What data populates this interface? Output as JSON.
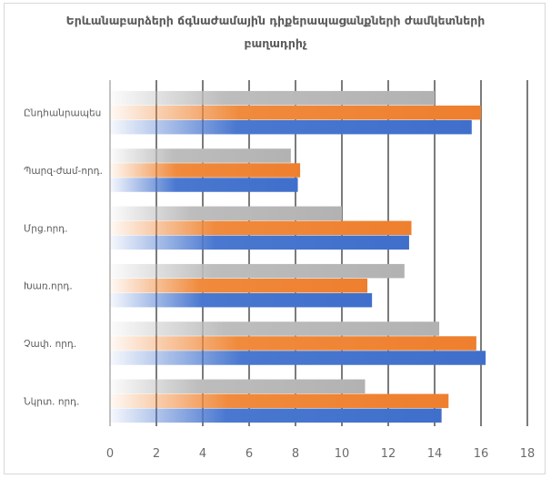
{
  "chart_data": {
    "type": "bar",
    "orientation": "horizontal",
    "title_lines": [
      "Երևանաբարձերի ճգնաժամային դիքերապացանքների ժամկետների",
      "բաղադրիչ"
    ],
    "categories": [
      "Ընդհանրապես",
      "Պարզ-ժամ-որդ.",
      "Մրց.որդ.",
      "Խառ.որդ.",
      "Չափ. որդ.",
      "Նկրտ. որդ."
    ],
    "series": [
      {
        "values": [
          14.0,
          7.8,
          10.0,
          12.7,
          14.2,
          11.0
        ],
        "color": "#bdbdbd"
      },
      {
        "values": [
          16.0,
          8.2,
          13.0,
          11.1,
          15.8,
          14.6
        ],
        "color": "#f08a3c"
      },
      {
        "values": [
          15.6,
          8.1,
          12.9,
          11.3,
          16.2,
          14.3
        ],
        "color": "#4a78d0"
      }
    ],
    "xlim": [
      0,
      18
    ],
    "xticks": [
      "0",
      "2",
      "4",
      "6",
      "8",
      "10",
      "12",
      "14",
      "16",
      "18"
    ],
    "grid": true,
    "legend": "none"
  }
}
